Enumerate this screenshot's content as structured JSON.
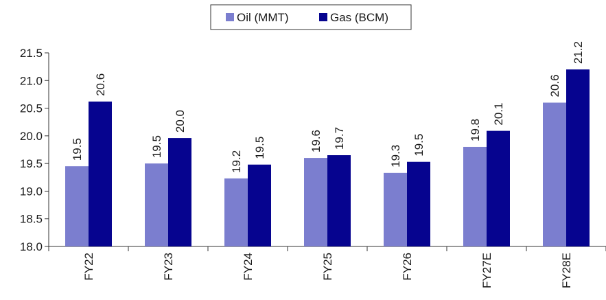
{
  "chart_data": {
    "type": "bar",
    "categories": [
      "FY22",
      "FY23",
      "FY24",
      "FY25",
      "FY26",
      "FY27E",
      "FY28E"
    ],
    "series": [
      {
        "name": "Oil (MMT)",
        "color": "#7b7ecf",
        "values": [
          19.45,
          19.5,
          19.23,
          19.6,
          19.33,
          19.8,
          20.6
        ],
        "labels": [
          "19.5",
          "19.5",
          "19.2",
          "19.6",
          "19.3",
          "19.8",
          "20.6"
        ]
      },
      {
        "name": "Gas (BCM)",
        "color": "#06048f",
        "values": [
          20.62,
          19.96,
          19.48,
          19.65,
          19.53,
          20.09,
          21.2
        ],
        "labels": [
          "20.6",
          "20.0",
          "19.5",
          "19.7",
          "19.5",
          "20.1",
          "21.2"
        ]
      }
    ],
    "ylim": [
      18.0,
      21.5
    ],
    "yticks": [
      "18.0",
      "18.5",
      "19.0",
      "19.5",
      "20.0",
      "20.5",
      "21.0",
      "21.5"
    ],
    "legend_position": "top-center",
    "grid": false
  }
}
